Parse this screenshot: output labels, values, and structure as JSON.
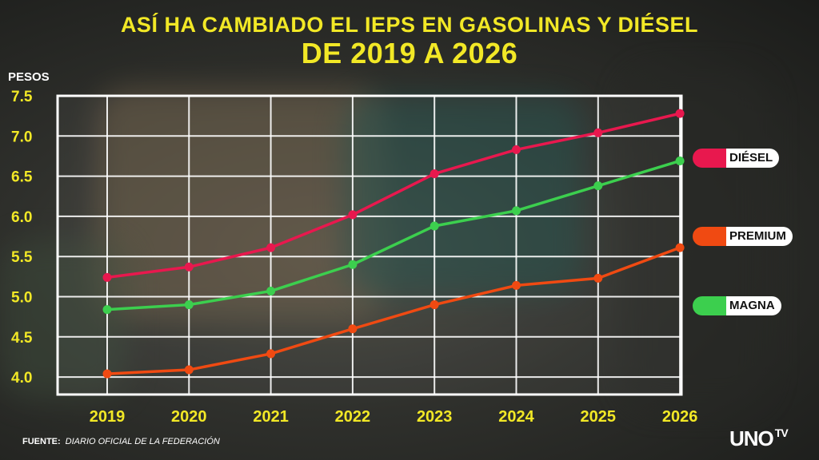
{
  "header": {
    "title_line1": "ASÍ HA CAMBIADO EL IEPS EN GASOLINAS Y DIÉSEL",
    "title_line2": "DE 2019 A 2026"
  },
  "source": {
    "label": "FUENTE:",
    "text": "DIARIO OFICIAL DE LA FEDERACIÓN"
  },
  "brand": {
    "logo_text": "UNO",
    "logo_suffix": "TV"
  },
  "colors": {
    "title": "#f2e826",
    "diesel": "#e8184e",
    "premium": "#f04a12",
    "magna": "#3ccf4e",
    "grid": "#ffffff"
  },
  "chart_data": {
    "type": "line",
    "title": "ASÍ HA CAMBIADO EL IEPS EN GASOLINAS Y DIÉSEL DE 2019 A 2026",
    "ylabel": "PESOS",
    "xlabel": "",
    "x": [
      "2019",
      "2020",
      "2021",
      "2022",
      "2023",
      "2024",
      "2025",
      "2026"
    ],
    "ylim": [
      3.8,
      7.5
    ],
    "yticks": [
      "7.5",
      "7.0",
      "6.5",
      "6.0",
      "5.5",
      "5.0",
      "4.5",
      "4.0"
    ],
    "grid": true,
    "legend_position": "right",
    "series": [
      {
        "name": "DIÉSEL",
        "color": "#e8184e",
        "values": [
          5.24,
          5.37,
          5.61,
          6.02,
          6.53,
          6.83,
          7.04,
          7.28
        ]
      },
      {
        "name": "PREMIUM",
        "color": "#f04a12",
        "values": [
          4.04,
          4.09,
          4.29,
          4.6,
          4.9,
          5.14,
          5.23,
          5.61
        ]
      },
      {
        "name": "MAGNA",
        "color": "#3ccf4e",
        "values": [
          4.84,
          4.9,
          5.07,
          5.4,
          5.88,
          6.07,
          6.38,
          6.69
        ]
      }
    ]
  }
}
